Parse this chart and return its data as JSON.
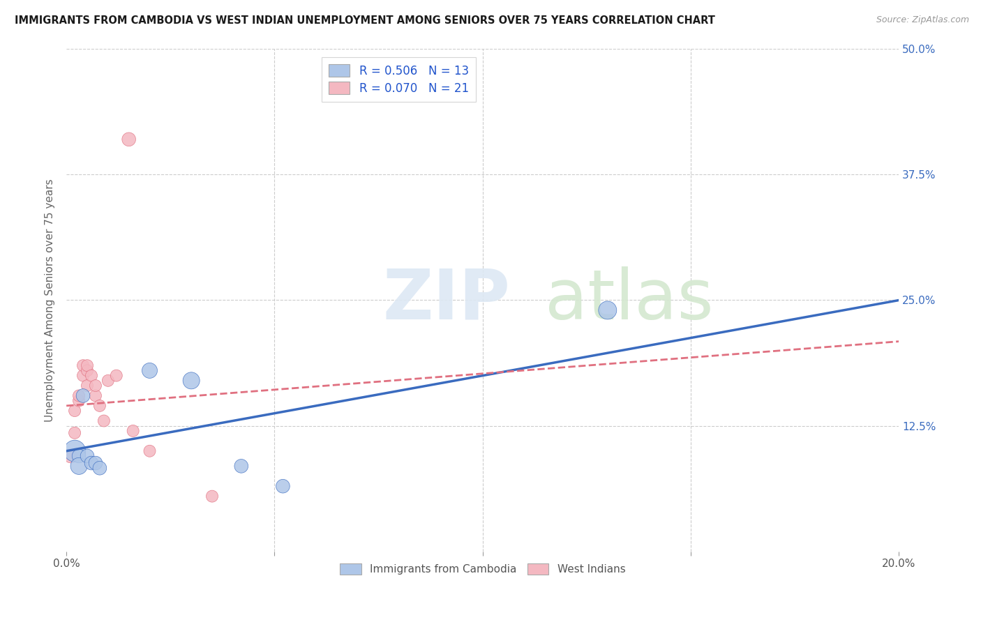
{
  "title": "IMMIGRANTS FROM CAMBODIA VS WEST INDIAN UNEMPLOYMENT AMONG SENIORS OVER 75 YEARS CORRELATION CHART",
  "source": "Source: ZipAtlas.com",
  "ylabel": "Unemployment Among Seniors over 75 years",
  "xlim": [
    0,
    0.2
  ],
  "ylim": [
    0,
    0.5
  ],
  "xticks": [
    0.0,
    0.05,
    0.1,
    0.15,
    0.2
  ],
  "xticklabels": [
    "0.0%",
    "",
    "",
    "",
    "20.0%"
  ],
  "yticks": [
    0.0,
    0.125,
    0.25,
    0.375,
    0.5
  ],
  "yticklabels": [
    "",
    "12.5%",
    "25.0%",
    "37.5%",
    "50.0%"
  ],
  "legend_r1": "R = 0.506",
  "legend_n1": "N = 13",
  "legend_r2": "R = 0.070",
  "legend_n2": "N = 21",
  "color_cambodia": "#aec6e8",
  "color_west_indian": "#f4b8c1",
  "color_line_cambodia": "#3a6bbf",
  "color_line_west_indian": "#e07080",
  "background_color": "#ffffff",
  "grid_color": "#cccccc",
  "cambodia_points": [
    [
      0.002,
      0.1
    ],
    [
      0.003,
      0.095
    ],
    [
      0.003,
      0.085
    ],
    [
      0.004,
      0.155
    ],
    [
      0.005,
      0.095
    ],
    [
      0.006,
      0.088
    ],
    [
      0.007,
      0.088
    ],
    [
      0.008,
      0.083
    ],
    [
      0.02,
      0.18
    ],
    [
      0.03,
      0.17
    ],
    [
      0.042,
      0.085
    ],
    [
      0.052,
      0.065
    ],
    [
      0.13,
      0.24
    ]
  ],
  "cambodia_sizes": [
    500,
    200,
    300,
    200,
    200,
    200,
    200,
    200,
    250,
    300,
    200,
    200,
    350
  ],
  "west_indian_points": [
    [
      0.001,
      0.095
    ],
    [
      0.002,
      0.118
    ],
    [
      0.002,
      0.14
    ],
    [
      0.003,
      0.15
    ],
    [
      0.003,
      0.155
    ],
    [
      0.004,
      0.175
    ],
    [
      0.004,
      0.185
    ],
    [
      0.005,
      0.165
    ],
    [
      0.005,
      0.18
    ],
    [
      0.005,
      0.185
    ],
    [
      0.006,
      0.175
    ],
    [
      0.007,
      0.155
    ],
    [
      0.007,
      0.165
    ],
    [
      0.008,
      0.145
    ],
    [
      0.009,
      0.13
    ],
    [
      0.01,
      0.17
    ],
    [
      0.012,
      0.175
    ],
    [
      0.015,
      0.41
    ],
    [
      0.016,
      0.12
    ],
    [
      0.02,
      0.1
    ],
    [
      0.035,
      0.055
    ]
  ],
  "west_indian_sizes": [
    200,
    150,
    150,
    150,
    150,
    150,
    150,
    150,
    150,
    150,
    150,
    150,
    150,
    150,
    150,
    150,
    150,
    200,
    150,
    150,
    150
  ]
}
